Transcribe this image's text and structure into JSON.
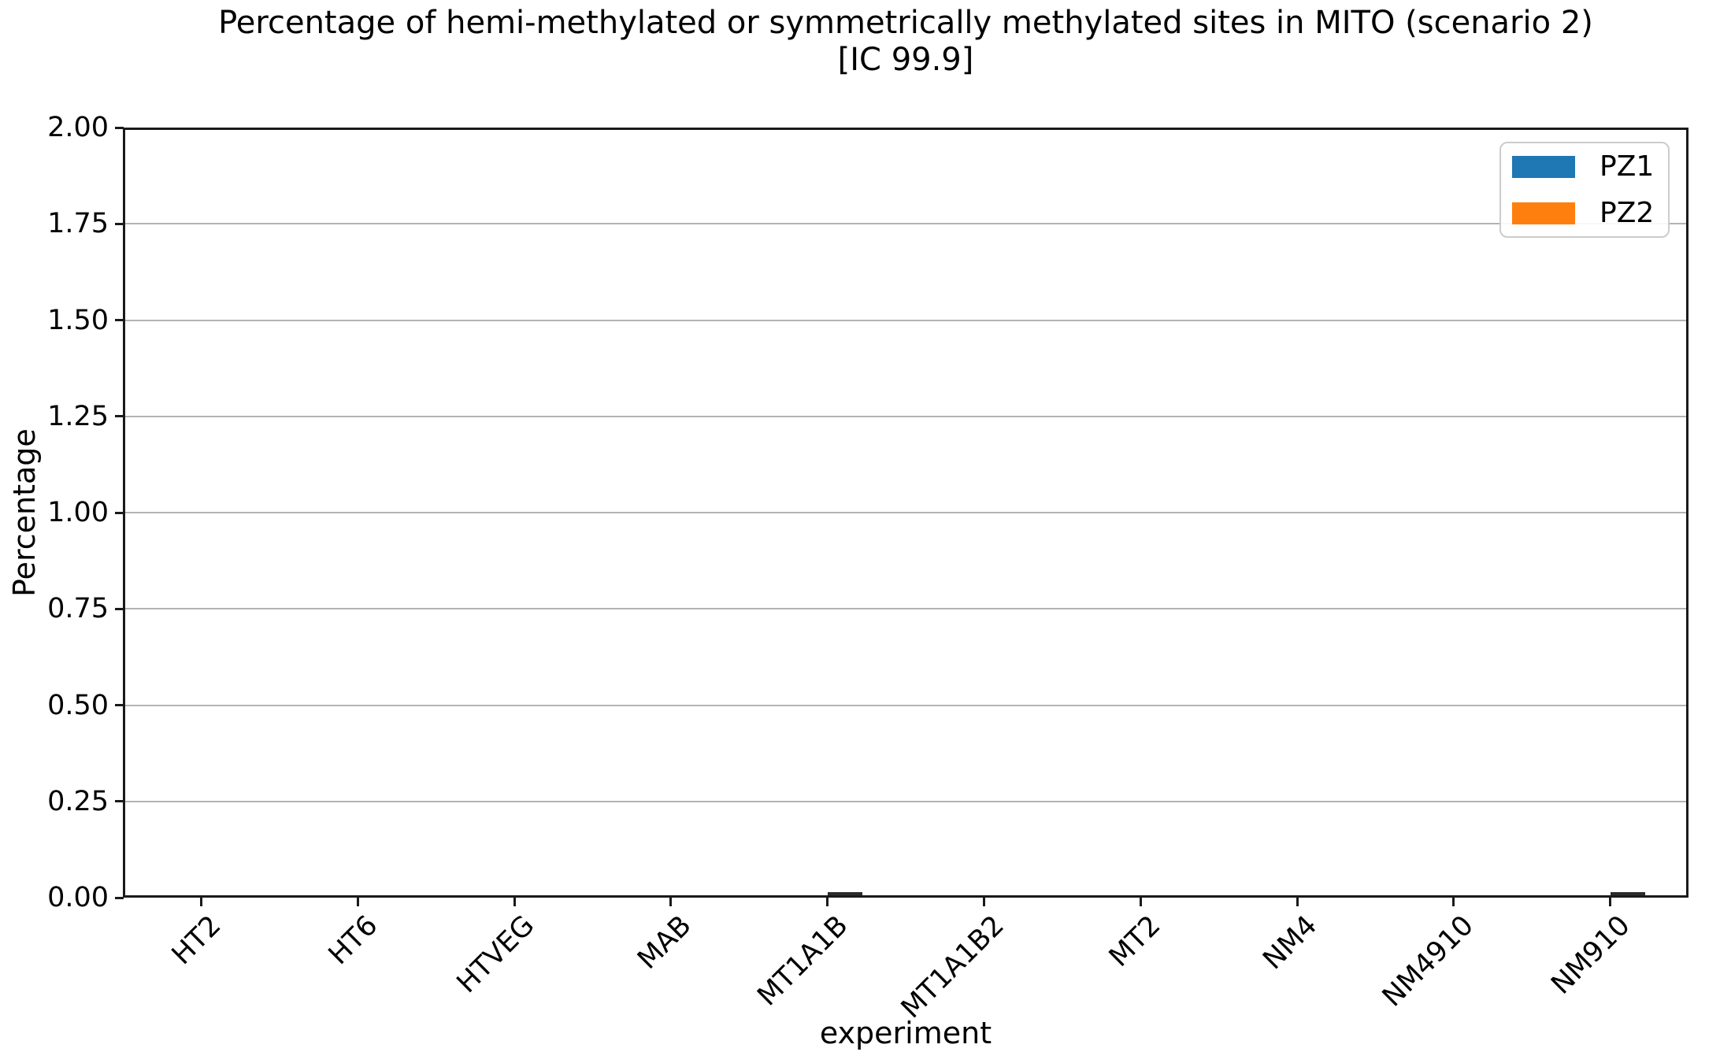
{
  "chart_data": {
    "type": "bar",
    "title_line1": "Percentage of hemi-methylated or symmetrically methylated sites in MITO (scenario 2)",
    "title_line2": "[IC 99.9]",
    "xlabel": "experiment",
    "ylabel": "Percentage",
    "categories": [
      "HT2",
      "HT6",
      "HTVEG",
      "MAB",
      "MT1A1B",
      "MT1A1B2",
      "MT2",
      "NM4",
      "NM4910",
      "NM910"
    ],
    "series": [
      {
        "name": "PZ1",
        "color": "#1f77b4",
        "values": [
          0,
          0,
          0,
          0,
          0,
          0,
          0,
          0,
          0,
          0
        ]
      },
      {
        "name": "PZ2",
        "color": "#ff7f0e",
        "values": [
          0,
          0,
          0,
          0,
          0.008,
          0,
          0,
          0,
          0,
          0.008
        ]
      }
    ],
    "ylim": [
      0,
      2.0
    ],
    "ytick_labels": [
      "2.00",
      "1.75",
      "1.50",
      "1.25",
      "1.00",
      "0.75",
      "0.50",
      "0.25",
      "0.00"
    ],
    "x_tick_rotation_deg": 45,
    "grid": "horizontal",
    "grid_color": "#b3b3b3",
    "spine_color": "#1a1a1a",
    "near_zero_mark_color": "#2b2b2b",
    "legend": {
      "position": "upper right",
      "entries": [
        {
          "label": "PZ1",
          "color": "#1f77b4"
        },
        {
          "label": "PZ2",
          "color": "#ff7f0e"
        }
      ]
    }
  }
}
